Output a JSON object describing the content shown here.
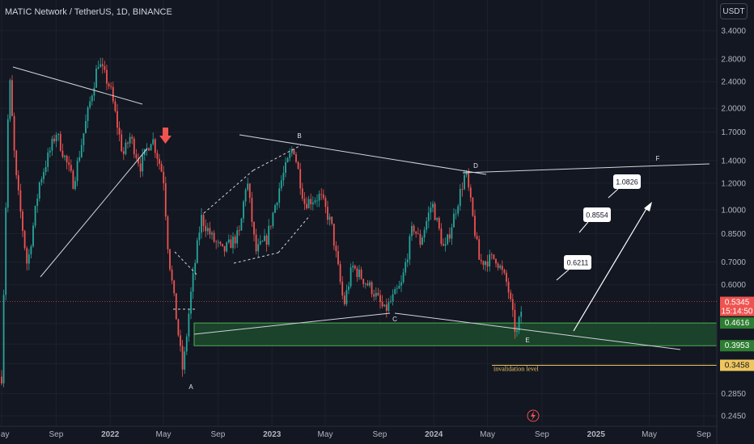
{
  "header": {
    "title": "MATIC Network / TetherUS, 1D, BINANCE"
  },
  "axis_unit": "USDT",
  "colors": {
    "background": "#131722",
    "up": "#26a69a",
    "down": "#ef5350",
    "zone_fill": "#1d4a2c",
    "zone_border": "#4caf50",
    "invalidation": "#f0c75e",
    "lines": "#d1d4dc"
  },
  "chart_data": {
    "type": "candlestick",
    "symbol": "MATIC Network / TetherUS",
    "interval": "1D",
    "exchange": "BINANCE",
    "y_scale": "log",
    "ylim": [
      0.22,
      4.4
    ],
    "y_ticks": [
      3.4,
      2.8,
      2.4,
      2.0,
      1.7,
      1.4,
      1.2,
      1.0,
      0.85,
      0.7,
      0.6,
      0.46,
      0.4,
      0.35,
      0.285,
      0.245
    ],
    "y_tick_labels": [
      "3.4000",
      "2.8000",
      "2.4000",
      "2.0000",
      "1.7000",
      "1.4000",
      "1.2000",
      "1.0000",
      "0.8500",
      "0.7000",
      "0.6000",
      "0.4600",
      "0.4000",
      "0.3500",
      "0.2850",
      "0.2450"
    ],
    "x_ticks": [
      "May",
      "Sep",
      "2022",
      "May",
      "Sep",
      "2023",
      "May",
      "Sep",
      "2024",
      "May",
      "Sep",
      "2025",
      "May",
      "Sep"
    ],
    "price_path": [
      {
        "date": "2021-05",
        "price": 0.32
      },
      {
        "date": "2021-05-18",
        "price": 2.6
      },
      {
        "date": "2021-06",
        "price": 1.3
      },
      {
        "date": "2021-06-28",
        "price": 0.68
      },
      {
        "date": "2021-07-25",
        "price": 1.2
      },
      {
        "date": "2021-09-01",
        "price": 1.7
      },
      {
        "date": "2021-10-10",
        "price": 1.2
      },
      {
        "date": "2021-11-10",
        "price": 1.9
      },
      {
        "date": "2021-12-05",
        "price": 2.75
      },
      {
        "date": "2022-01-01",
        "price": 2.3
      },
      {
        "date": "2022-01-30",
        "price": 1.45
      },
      {
        "date": "2022-02-15",
        "price": 1.65
      },
      {
        "date": "2022-03-10",
        "price": 1.35
      },
      {
        "date": "2022-04-05",
        "price": 1.65
      },
      {
        "date": "2022-05-01",
        "price": 1.25
      },
      {
        "date": "2022-05-12",
        "price": 0.75
      },
      {
        "date": "2022-06-14",
        "price": 0.33
      },
      {
        "date": "2022-07-01",
        "price": 0.55
      },
      {
        "date": "2022-07-25",
        "price": 0.95
      },
      {
        "date": "2022-08-20",
        "price": 0.82
      },
      {
        "date": "2022-09-12",
        "price": 0.75
      },
      {
        "date": "2022-10-01",
        "price": 0.8
      },
      {
        "date": "2022-10-20",
        "price": 0.85
      },
      {
        "date": "2022-11-05",
        "price": 1.25
      },
      {
        "date": "2022-11-25",
        "price": 0.75
      },
      {
        "date": "2022-12-20",
        "price": 0.82
      },
      {
        "date": "2023-01-20",
        "price": 1.2
      },
      {
        "date": "2023-02-18",
        "price": 1.55
      },
      {
        "date": "2023-03-15",
        "price": 1.05
      },
      {
        "date": "2023-04-20",
        "price": 1.1
      },
      {
        "date": "2023-05-15",
        "price": 0.9
      },
      {
        "date": "2023-06-12",
        "price": 0.52
      },
      {
        "date": "2023-07-01",
        "price": 0.68
      },
      {
        "date": "2023-08-15",
        "price": 0.58
      },
      {
        "date": "2023-09-12",
        "price": 0.5
      },
      {
        "date": "2023-10-20",
        "price": 0.6
      },
      {
        "date": "2023-11-15",
        "price": 0.9
      },
      {
        "date": "2023-12-01",
        "price": 0.8
      },
      {
        "date": "2023-12-28",
        "price": 1.05
      },
      {
        "date": "2024-01-25",
        "price": 0.75
      },
      {
        "date": "2024-03-13",
        "price": 1.3
      },
      {
        "date": "2024-04-13",
        "price": 0.7
      },
      {
        "date": "2024-05-20",
        "price": 0.72
      },
      {
        "date": "2024-06-15",
        "price": 0.6
      },
      {
        "date": "2024-07-05",
        "price": 0.42
      },
      {
        "date": "2024-07-20",
        "price": 0.5345
      }
    ],
    "zone": {
      "top": 0.4616,
      "bottom": 0.3953,
      "label_top": "0.4616",
      "label_bottom": "0.3953"
    },
    "invalidation": {
      "price": 0.3458,
      "label": "invalidation level"
    },
    "current_price": {
      "value": "0.5345",
      "countdown": "15:14:50"
    },
    "wave_labels": [
      "A",
      "B",
      "C",
      "D",
      "E",
      "F"
    ],
    "targets": [
      {
        "label": "0.6211",
        "value": 0.6211
      },
      {
        "label": "0.8554",
        "value": 0.8554
      },
      {
        "label": "1.0826",
        "value": 1.0826
      }
    ]
  }
}
